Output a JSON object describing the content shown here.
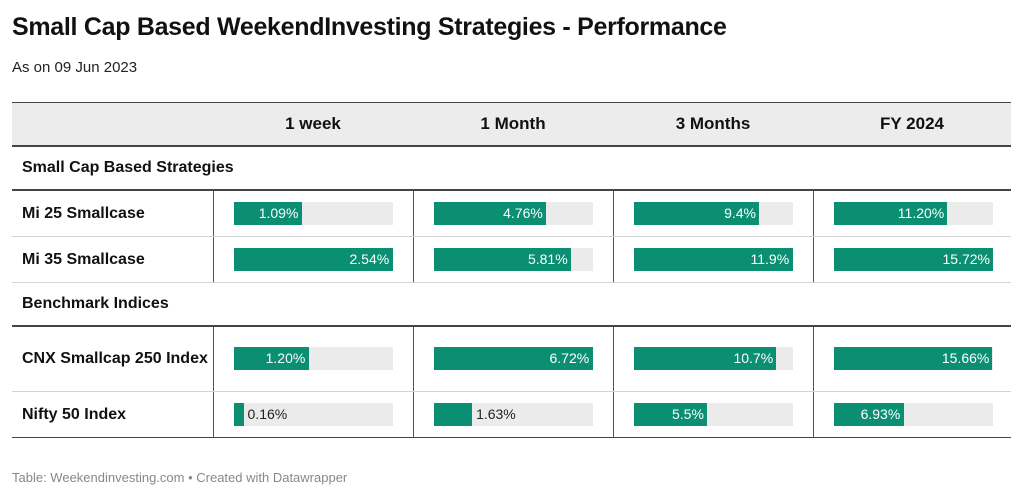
{
  "title": "Small Cap Based WeekendInvesting Strategies - Performance",
  "subtitle": "As on 09 Jun 2023",
  "footer": "Table: Weekendinvesting.com • Created with Datawrapper",
  "colors": {
    "bar": "#0a8f73",
    "track": "#ebebeb",
    "header_bg": "#ececec"
  },
  "chart_data": {
    "type": "table",
    "columns": [
      "",
      "1 week",
      "1 Month",
      "3 Months",
      "FY 2024"
    ],
    "groups": [
      {
        "label": "Small Cap Based Strategies",
        "rows": [
          {
            "name": "Mi 25 Smallcase",
            "values": [
              1.09,
              4.76,
              9.4,
              11.2
            ],
            "labels": [
              "1.09%",
              "4.76%",
              "9.4%",
              "11.20%"
            ]
          },
          {
            "name": "Mi 35 Smallcase",
            "values": [
              2.54,
              5.81,
              11.9,
              15.72
            ],
            "labels": [
              "2.54%",
              "5.81%",
              "11.9%",
              "15.72%"
            ]
          }
        ]
      },
      {
        "label": "Benchmark Indices",
        "rows": [
          {
            "name": "CNX Smallcap 250 Index",
            "values": [
              1.2,
              6.72,
              10.7,
              15.66
            ],
            "labels": [
              "1.20%",
              "6.72%",
              "10.7%",
              "15.66%"
            ]
          },
          {
            "name": "Nifty 50 Index",
            "values": [
              0.16,
              1.63,
              5.5,
              6.93
            ],
            "labels": [
              "0.16%",
              "1.63%",
              "5.5%",
              "6.93%"
            ]
          }
        ]
      }
    ],
    "column_max": [
      2.54,
      6.72,
      11.9,
      15.72
    ]
  }
}
